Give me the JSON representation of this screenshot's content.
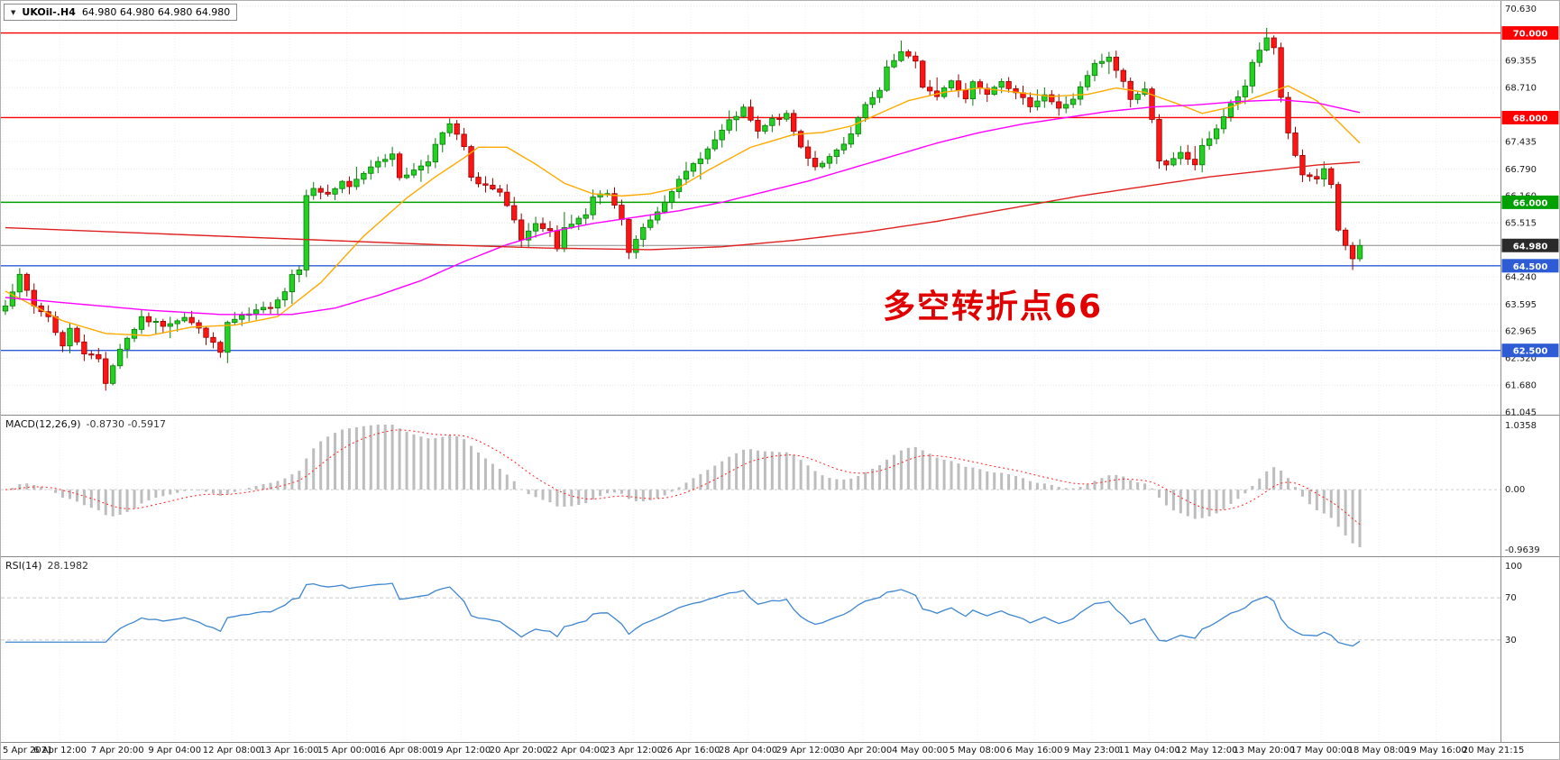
{
  "title_bar": {
    "dropdown_icon": "▼",
    "symbol_period": "UKOil-.H4",
    "ohlc": "64.980 64.980 64.980 64.980"
  },
  "annotation": {
    "text": "多空转折点66",
    "color": "#e10000"
  },
  "panels": {
    "macd": {
      "label": "MACD(12,26,9)",
      "values": "-0.8730 -0.5917"
    },
    "rsi": {
      "label": "RSI(14)",
      "value": "28.1982"
    }
  },
  "chart_data": [
    {
      "type": "candlestick",
      "title": "UKOil-.H4",
      "timeframe": "H4",
      "bars": 190,
      "ylim": [
        61.045,
        70.63
      ],
      "bars_per_x_tick": 8,
      "x_tick_labels": [
        "5 Apr 2021",
        "6 Apr 12:00",
        "7 Apr 20:00",
        "9 Apr 04:00",
        "12 Apr 08:00",
        "13 Apr 16:00",
        "15 Apr 00:00",
        "16 Apr 08:00",
        "19 Apr 12:00",
        "20 Apr 20:00",
        "22 Apr 04:00",
        "23 Apr 12:00",
        "26 Apr 16:00",
        "28 Apr 04:00",
        "29 Apr 12:00",
        "30 Apr 20:00",
        "4 May 00:00",
        "5 May 08:00",
        "6 May 16:00",
        "9 May 23:00",
        "11 May 04:00",
        "12 May 12:00",
        "13 May 20:00",
        "17 May 00:00",
        "18 May 08:00",
        "19 May 16:00",
        "20 May 21:15"
      ],
      "y_tick_labels": [
        "70.630",
        "69.355",
        "68.710",
        "67.435",
        "66.790",
        "66.160",
        "65.515",
        "64.240",
        "63.595",
        "62.965",
        "62.320",
        "61.680",
        "61.045"
      ],
      "y_grid_values": [
        70.63,
        69.985,
        69.355,
        68.71,
        68.065,
        67.435,
        66.79,
        66.16,
        65.515,
        64.885,
        64.24,
        63.595,
        62.965,
        62.32,
        61.68,
        61.045
      ],
      "last_price": 64.98,
      "last_price_label": "64.980",
      "last_price_badge_color": "#2a2a2a",
      "last_price_line_color": "#8a8a8a",
      "horizontal_levels": [
        {
          "value": 70.0,
          "label": "70.000",
          "color": "#fe0000"
        },
        {
          "value": 68.0,
          "label": "68.000",
          "color": "#fe0000"
        },
        {
          "value": 66.0,
          "label": "66.000",
          "color": "#00a000"
        },
        {
          "value": 64.5,
          "label": "64.500",
          "color": "#2e5cd5"
        },
        {
          "value": 62.5,
          "label": "62.500",
          "color": "#2e5cd5"
        }
      ],
      "close_anchors": [
        [
          0,
          63.6
        ],
        [
          2,
          64.25
        ],
        [
          4,
          63.55
        ],
        [
          6,
          63.3
        ],
        [
          8,
          62.6
        ],
        [
          9,
          63.0
        ],
        [
          11,
          62.45
        ],
        [
          13,
          62.3
        ],
        [
          14,
          61.75
        ],
        [
          16,
          62.55
        ],
        [
          19,
          63.25
        ],
        [
          22,
          63.1
        ],
        [
          25,
          63.3
        ],
        [
          28,
          62.85
        ],
        [
          30,
          62.45
        ],
        [
          31,
          63.15
        ],
        [
          34,
          63.35
        ],
        [
          37,
          63.55
        ],
        [
          39,
          63.9
        ],
        [
          40,
          64.3
        ],
        [
          41,
          64.45
        ],
        [
          42,
          66.2
        ],
        [
          43,
          66.3
        ],
        [
          45,
          66.2
        ],
        [
          47,
          66.45
        ],
        [
          48,
          66.35
        ],
        [
          50,
          66.7
        ],
        [
          52,
          67.0
        ],
        [
          54,
          67.1
        ],
        [
          55,
          66.6
        ],
        [
          57,
          66.75
        ],
        [
          59,
          67.0
        ],
        [
          60,
          67.35
        ],
        [
          62,
          67.85
        ],
        [
          64,
          67.3
        ],
        [
          65,
          66.55
        ],
        [
          67,
          66.4
        ],
        [
          69,
          66.2
        ],
        [
          71,
          65.55
        ],
        [
          72,
          65.1
        ],
        [
          74,
          65.45
        ],
        [
          76,
          65.3
        ],
        [
          77,
          64.95
        ],
        [
          78,
          65.4
        ],
        [
          81,
          65.7
        ],
        [
          82,
          66.1
        ],
        [
          84,
          66.2
        ],
        [
          86,
          65.6
        ],
        [
          87,
          64.8
        ],
        [
          89,
          65.4
        ],
        [
          91,
          65.8
        ],
        [
          93,
          66.3
        ],
        [
          96,
          66.9
        ],
        [
          98,
          67.25
        ],
        [
          101,
          67.9
        ],
        [
          103,
          68.2
        ],
        [
          105,
          67.65
        ],
        [
          107,
          67.95
        ],
        [
          109,
          68.05
        ],
        [
          111,
          67.3
        ],
        [
          113,
          66.85
        ],
        [
          115,
          67.05
        ],
        [
          117,
          67.35
        ],
        [
          118,
          67.6
        ],
        [
          120,
          68.3
        ],
        [
          122,
          68.6
        ],
        [
          123,
          69.2
        ],
        [
          125,
          69.55
        ],
        [
          127,
          69.3
        ],
        [
          128,
          68.75
        ],
        [
          130,
          68.5
        ],
        [
          132,
          68.9
        ],
        [
          134,
          68.45
        ],
        [
          135,
          68.85
        ],
        [
          137,
          68.6
        ],
        [
          139,
          68.9
        ],
        [
          141,
          68.55
        ],
        [
          143,
          68.3
        ],
        [
          145,
          68.55
        ],
        [
          147,
          68.2
        ],
        [
          149,
          68.45
        ],
        [
          150,
          68.7
        ],
        [
          152,
          69.25
        ],
        [
          154,
          69.4
        ],
        [
          156,
          68.85
        ],
        [
          157,
          68.45
        ],
        [
          159,
          68.65
        ],
        [
          160,
          68.0
        ],
        [
          161,
          67.0
        ],
        [
          162,
          66.85
        ],
        [
          164,
          67.15
        ],
        [
          166,
          66.9
        ],
        [
          167,
          67.3
        ],
        [
          169,
          67.75
        ],
        [
          171,
          68.3
        ],
        [
          173,
          68.7
        ],
        [
          174,
          69.3
        ],
        [
          176,
          69.9
        ],
        [
          177,
          69.65
        ],
        [
          178,
          68.5
        ],
        [
          179,
          67.6
        ],
        [
          181,
          66.6
        ],
        [
          183,
          66.55
        ],
        [
          184,
          66.8
        ],
        [
          185,
          66.4
        ],
        [
          186,
          65.3
        ],
        [
          188,
          64.65
        ],
        [
          189,
          64.98
        ]
      ],
      "wick_extremes": [
        [
          14,
          "low",
          61.55
        ],
        [
          125,
          "high",
          69.82
        ],
        [
          176,
          "high",
          70.12
        ],
        [
          188,
          "low",
          64.4
        ]
      ],
      "moving_averages": [
        {
          "name": "ma-fast",
          "color": "#ffaa00",
          "anchors": [
            [
              0,
              63.9
            ],
            [
              8,
              63.2
            ],
            [
              14,
              62.9
            ],
            [
              20,
              62.85
            ],
            [
              26,
              63.05
            ],
            [
              32,
              63.1
            ],
            [
              38,
              63.3
            ],
            [
              44,
              64.1
            ],
            [
              50,
              65.2
            ],
            [
              56,
              66.1
            ],
            [
              60,
              66.6
            ],
            [
              64,
              67.05
            ],
            [
              66,
              67.3
            ],
            [
              70,
              67.3
            ],
            [
              74,
              66.9
            ],
            [
              78,
              66.45
            ],
            [
              82,
              66.2
            ],
            [
              86,
              66.15
            ],
            [
              90,
              66.2
            ],
            [
              94,
              66.35
            ],
            [
              98,
              66.75
            ],
            [
              104,
              67.3
            ],
            [
              110,
              67.6
            ],
            [
              114,
              67.65
            ],
            [
              118,
              67.8
            ],
            [
              122,
              68.1
            ],
            [
              126,
              68.4
            ],
            [
              131,
              68.6
            ],
            [
              136,
              68.7
            ],
            [
              141,
              68.6
            ],
            [
              146,
              68.5
            ],
            [
              151,
              68.55
            ],
            [
              155,
              68.7
            ],
            [
              159,
              68.6
            ],
            [
              164,
              68.3
            ],
            [
              167,
              68.1
            ],
            [
              171,
              68.25
            ],
            [
              174,
              68.45
            ],
            [
              179,
              68.75
            ],
            [
              183,
              68.4
            ],
            [
              186,
              67.9
            ],
            [
              189,
              67.4
            ]
          ]
        },
        {
          "name": "ma-medium",
          "color": "#ff00ff",
          "anchors": [
            [
              0,
              63.75
            ],
            [
              10,
              63.6
            ],
            [
              20,
              63.45
            ],
            [
              30,
              63.35
            ],
            [
              40,
              63.35
            ],
            [
              46,
              63.5
            ],
            [
              52,
              63.8
            ],
            [
              58,
              64.15
            ],
            [
              64,
              64.6
            ],
            [
              70,
              65.0
            ],
            [
              76,
              65.3
            ],
            [
              82,
              65.5
            ],
            [
              88,
              65.65
            ],
            [
              94,
              65.8
            ],
            [
              100,
              66.0
            ],
            [
              106,
              66.25
            ],
            [
              112,
              66.5
            ],
            [
              118,
              66.8
            ],
            [
              124,
              67.1
            ],
            [
              130,
              67.4
            ],
            [
              136,
              67.65
            ],
            [
              142,
              67.85
            ],
            [
              148,
              68.0
            ],
            [
              154,
              68.15
            ],
            [
              160,
              68.25
            ],
            [
              166,
              68.3
            ],
            [
              172,
              68.38
            ],
            [
              178,
              68.42
            ],
            [
              183,
              68.35
            ],
            [
              189,
              68.12
            ]
          ]
        },
        {
          "name": "ma-slow",
          "color": "#e02020",
          "anchors": [
            [
              0,
              65.4
            ],
            [
              15,
              65.3
            ],
            [
              30,
              65.2
            ],
            [
              45,
              65.1
            ],
            [
              60,
              65.0
            ],
            [
              75,
              64.92
            ],
            [
              90,
              64.88
            ],
            [
              100,
              64.95
            ],
            [
              110,
              65.1
            ],
            [
              120,
              65.3
            ],
            [
              130,
              65.55
            ],
            [
              140,
              65.85
            ],
            [
              150,
              66.15
            ],
            [
              160,
              66.4
            ],
            [
              168,
              66.6
            ],
            [
              176,
              66.75
            ],
            [
              183,
              66.88
            ],
            [
              189,
              66.95
            ]
          ]
        }
      ],
      "candle_colors": {
        "up": "#22d122",
        "up_border": "#0a7a0a",
        "down": "#ff1414",
        "down_border": "#990000"
      }
    },
    {
      "type": "bar",
      "title": "MACD(12,26,9)",
      "current_values": "-0.8730 -0.5917",
      "params": [
        12,
        26,
        9
      ],
      "derived": "macd_of_closes",
      "y_tick_labels": [
        "1.0358",
        "0.00",
        "-0.9639"
      ],
      "histogram_color": "#bdbdbd",
      "signal_color": "#ff2020"
    },
    {
      "type": "line",
      "title": "RSI(14)",
      "current_value": "28.1982",
      "params": [
        14
      ],
      "derived": "rsi_of_closes",
      "levels": [
        70,
        30
      ],
      "y_tick_labels": [
        "100",
        "70",
        "30"
      ],
      "line_color": "#3e86d0"
    }
  ]
}
